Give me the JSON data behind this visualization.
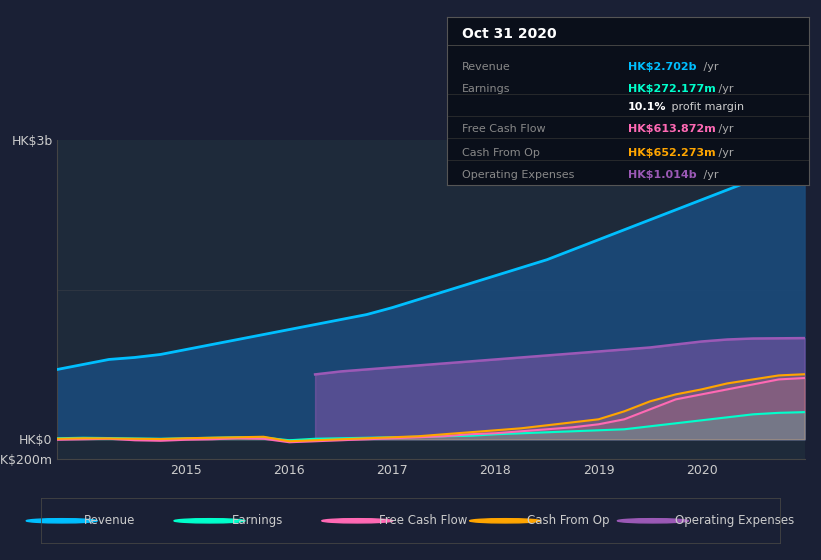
{
  "bg_color": "#1a2035",
  "plot_bg_color": "#1e2a3a",
  "title": "Oct 31 2020",
  "years": [
    2013.75,
    2014.0,
    2014.25,
    2014.5,
    2014.75,
    2015.0,
    2015.25,
    2015.5,
    2015.75,
    2016.0,
    2016.25,
    2016.5,
    2016.75,
    2017.0,
    2017.25,
    2017.5,
    2017.75,
    2018.0,
    2018.25,
    2018.5,
    2018.75,
    2019.0,
    2019.25,
    2019.5,
    2019.75,
    2020.0,
    2020.25,
    2020.5,
    2020.75,
    2021.0
  ],
  "revenue": [
    700,
    750,
    800,
    820,
    850,
    900,
    950,
    1000,
    1050,
    1100,
    1150,
    1200,
    1250,
    1320,
    1400,
    1480,
    1560,
    1640,
    1720,
    1800,
    1900,
    2000,
    2100,
    2200,
    2300,
    2400,
    2500,
    2600,
    2680,
    2702
  ],
  "earnings": [
    10,
    15,
    12,
    8,
    5,
    10,
    15,
    20,
    18,
    -10,
    5,
    10,
    15,
    20,
    25,
    30,
    35,
    50,
    60,
    70,
    80,
    90,
    100,
    130,
    160,
    190,
    220,
    250,
    265,
    272
  ],
  "free_cash_flow": [
    -5,
    0,
    5,
    -10,
    -15,
    -5,
    0,
    10,
    5,
    -30,
    -20,
    -10,
    0,
    10,
    20,
    30,
    50,
    60,
    80,
    100,
    120,
    150,
    200,
    300,
    400,
    450,
    500,
    550,
    600,
    614
  ],
  "cash_from_op": [
    5,
    10,
    8,
    5,
    2,
    10,
    15,
    20,
    25,
    -20,
    -10,
    0,
    10,
    20,
    30,
    50,
    70,
    90,
    110,
    140,
    170,
    200,
    280,
    380,
    450,
    500,
    560,
    600,
    640,
    652
  ],
  "operating_expenses": [
    0,
    0,
    0,
    0,
    0,
    0,
    0,
    0,
    0,
    0,
    650,
    680,
    700,
    720,
    740,
    760,
    780,
    800,
    820,
    840,
    860,
    880,
    900,
    920,
    950,
    980,
    1000,
    1010,
    1012,
    1014
  ],
  "revenue_color": "#00bfff",
  "earnings_color": "#00ffcc",
  "free_cash_flow_color": "#ff69b4",
  "cash_from_op_color": "#ffa500",
  "operating_expenses_color": "#9b59b6",
  "revenue_fill": "#1a4a7a",
  "ylim_min": -200,
  "ylim_max": 3000,
  "ytick_labels": [
    "-HK$200m",
    "HK$0",
    "HK$3b"
  ],
  "xticks": [
    2015,
    2016,
    2017,
    2018,
    2019,
    2020
  ],
  "legend_items": [
    "Revenue",
    "Earnings",
    "Free Cash Flow",
    "Cash From Op",
    "Operating Expenses"
  ],
  "legend_colors": [
    "#00bfff",
    "#00ffcc",
    "#ff69b4",
    "#ffa500",
    "#9b59b6"
  ],
  "info_box": {
    "title": "Oct 31 2020",
    "rows": [
      {
        "label": "Revenue",
        "value": "HK$2.702b",
        "suffix": " /yr",
        "value_color": "#00bfff"
      },
      {
        "label": "Earnings",
        "value": "HK$272.177m",
        "suffix": " /yr",
        "value_color": "#00ffcc"
      },
      {
        "label": "",
        "value": "10.1%",
        "suffix": " profit margin",
        "value_color": "#ffffff"
      },
      {
        "label": "Free Cash Flow",
        "value": "HK$613.872m",
        "suffix": " /yr",
        "value_color": "#ff69b4"
      },
      {
        "label": "Cash From Op",
        "value": "HK$652.273m",
        "suffix": " /yr",
        "value_color": "#ffa500"
      },
      {
        "label": "Operating Expenses",
        "value": "HK$1.014b",
        "suffix": " /yr",
        "value_color": "#9b59b6"
      }
    ]
  }
}
